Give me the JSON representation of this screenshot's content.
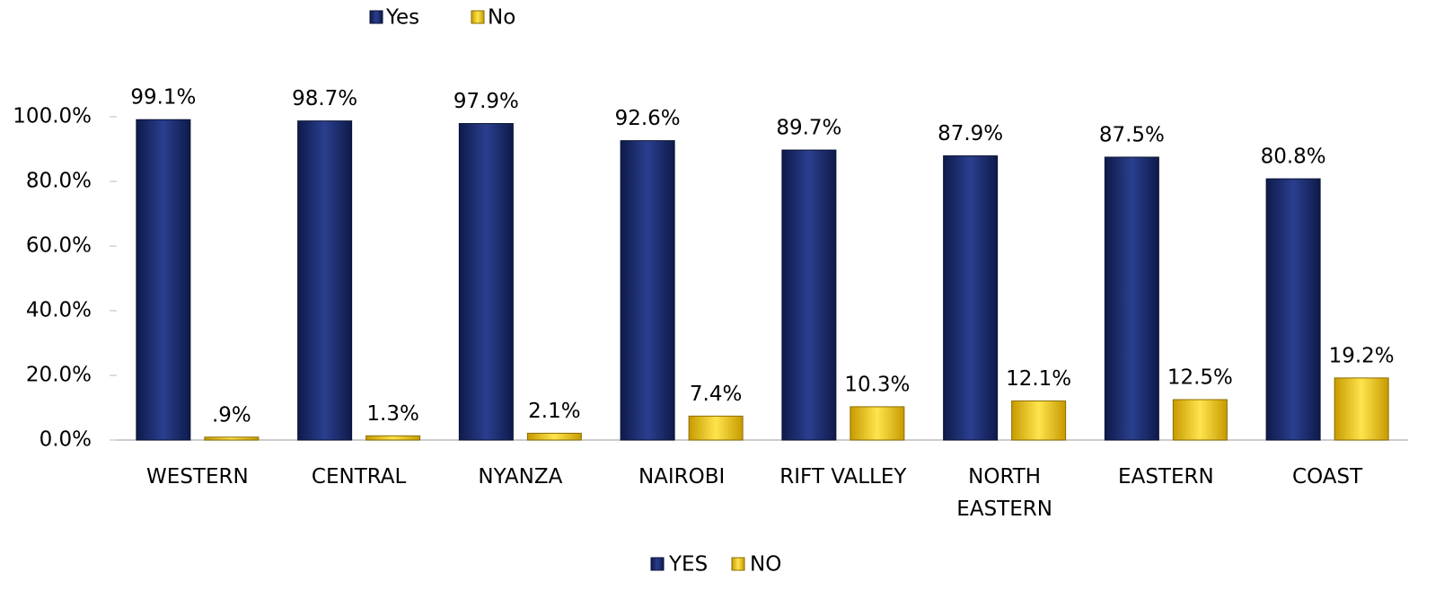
{
  "chart_data": {
    "type": "bar",
    "categories": [
      "WESTERN",
      "CENTRAL",
      "NYANZA",
      "NAIROBI",
      "RIFT VALLEY",
      "NORTH EASTERN",
      "EASTERN",
      "COAST"
    ],
    "series": [
      {
        "name": "Yes",
        "color": "#1a2a6c",
        "values": [
          99.1,
          98.7,
          97.9,
          92.6,
          89.7,
          87.9,
          87.5,
          80.8
        ],
        "value_labels": [
          "99.1%",
          "98.7%",
          "97.9%",
          "92.6%",
          "89.7%",
          "87.9%",
          "87.5%",
          "80.8%"
        ]
      },
      {
        "name": "No",
        "color": "#f2c200",
        "values": [
          0.9,
          1.3,
          2.1,
          7.4,
          10.3,
          12.1,
          12.5,
          19.2
        ],
        "value_labels": [
          ".9%",
          "1.3%",
          "2.1%",
          "7.4%",
          "10.3%",
          "12.1%",
          "12.5%",
          "19.2%"
        ]
      }
    ],
    "bottom_legend": [
      "YES",
      "NO"
    ],
    "ylim": [
      0,
      100
    ],
    "yticks": [
      {
        "value": 0,
        "label": "0.0%"
      },
      {
        "value": 20,
        "label": "20.0%"
      },
      {
        "value": 40,
        "label": "40.0%"
      },
      {
        "value": 60,
        "label": "60.0%"
      },
      {
        "value": 80,
        "label": "80.0%"
      },
      {
        "value": 100,
        "label": "100.0%"
      }
    ],
    "grid": false
  }
}
